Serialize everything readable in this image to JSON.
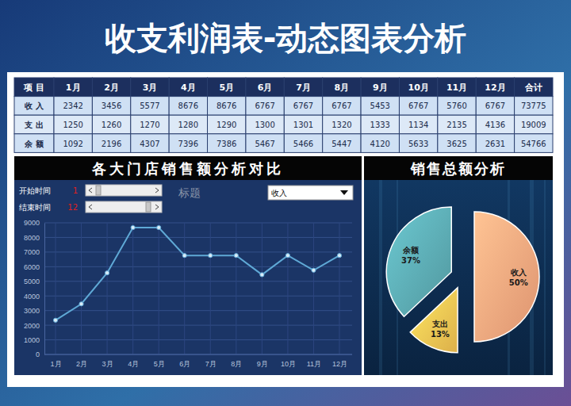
{
  "header": {
    "title": "收支利润表-动态图表分析"
  },
  "table": {
    "columns": [
      "项 目",
      "1月",
      "2月",
      "3月",
      "4月",
      "5月",
      "6月",
      "7月",
      "8月",
      "9月",
      "10月",
      "11月",
      "12月",
      "合计"
    ],
    "rows": [
      [
        "收 入",
        2342,
        3456,
        5577,
        8676,
        8676,
        6767,
        6767,
        6767,
        5453,
        6767,
        5760,
        6767,
        73775
      ],
      [
        "支 出",
        1250,
        1260,
        1270,
        1280,
        1290,
        1300,
        1301,
        1320,
        1333,
        1134,
        2135,
        4136,
        19009
      ],
      [
        "余 额",
        1092,
        2196,
        4307,
        7396,
        7386,
        5467,
        5466,
        5447,
        4120,
        5633,
        3625,
        2631,
        54766
      ]
    ]
  },
  "controls": {
    "start_label": "开始时间",
    "start": 1,
    "end_label": "结束时间",
    "end": 12,
    "title_label": "标题",
    "selected": "收入"
  },
  "chart_data": [
    {
      "type": "line",
      "title": "各大门店销售额分析对比",
      "categories": [
        "1月",
        "2月",
        "3月",
        "4月",
        "5月",
        "6月",
        "7月",
        "8月",
        "9月",
        "10月",
        "11月",
        "12月"
      ],
      "values": [
        2342,
        3456,
        5577,
        8676,
        8676,
        6767,
        6767,
        6767,
        5453,
        6767,
        5760,
        6767
      ],
      "color": "#5fa9d6",
      "marker": "circle",
      "ylim": [
        0,
        9000
      ],
      "yticks": [
        0,
        1000,
        2000,
        3000,
        4000,
        5000,
        6000,
        7000,
        8000,
        9000
      ],
      "grid": true
    },
    {
      "type": "pie",
      "title": "销售总额分析",
      "categories": [
        "收入",
        "支出",
        "余额"
      ],
      "values": [
        50,
        13,
        37
      ],
      "value_labels": [
        "50%",
        "13%",
        "37%"
      ],
      "colors": [
        "#f6a47c",
        "#f5c352",
        "#5aa8b0"
      ],
      "data_labels": true
    }
  ]
}
